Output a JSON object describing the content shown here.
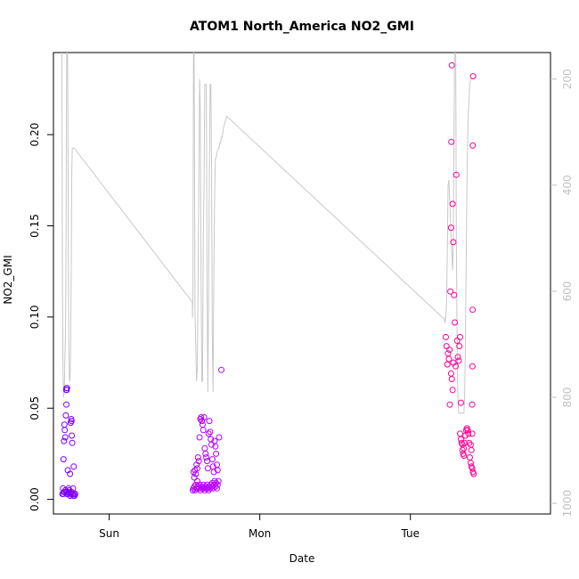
{
  "chart_data": {
    "type": "scatter",
    "title": "ATOM1 North_America NO2_GMI",
    "xlabel": "Date",
    "ylabel": "NO2_GMI",
    "x_ticks": [
      "Sun",
      "Mon",
      "Tue"
    ],
    "x_tick_values": [
      1.0,
      2.0,
      3.0
    ],
    "xlim": [
      0.63,
      3.93
    ],
    "y_ticks": [
      "0.00",
      "0.05",
      "0.10",
      "0.15",
      "0.20"
    ],
    "y_tick_values": [
      0.0,
      0.05,
      0.1,
      0.15,
      0.2
    ],
    "ylim": [
      -0.008,
      0.245
    ],
    "y2_ticks": [
      "200",
      "400",
      "600",
      "800",
      "1000"
    ],
    "y2_tick_values": [
      200,
      400,
      600,
      800,
      1000
    ],
    "y2_lim": [
      1020,
      150
    ],
    "grid": false,
    "colors": {
      "start": "#7b00ff",
      "mid": "#d000ff",
      "end": "#ff0090",
      "pressure_line": "#c8c8c8"
    },
    "series": [
      {
        "values_xy": [
          [
            0.69,
            0.003
          ],
          [
            0.695,
            0.003
          ],
          [
            0.7,
            0.004
          ],
          [
            0.705,
            0.004
          ],
          [
            0.71,
            0.005
          ],
          [
            0.715,
            0.004
          ],
          [
            0.72,
            0.003
          ],
          [
            0.725,
            0.003
          ],
          [
            0.73,
            0.004
          ],
          [
            0.735,
            0.005
          ],
          [
            0.74,
            0.002
          ],
          [
            0.745,
            0.003
          ],
          [
            0.75,
            0.004
          ],
          [
            0.755,
            0.003
          ],
          [
            0.76,
            0.002
          ],
          [
            0.765,
            0.003
          ],
          [
            0.77,
            0.002
          ],
          [
            0.775,
            0.003
          ],
          [
            0.693,
            0.006
          ],
          [
            0.697,
            0.022
          ],
          [
            0.7,
            0.032
          ],
          [
            0.703,
            0.041
          ],
          [
            0.705,
            0.038
          ],
          [
            0.708,
            0.034
          ],
          [
            0.712,
            0.046
          ],
          [
            0.716,
            0.052
          ],
          [
            0.715,
            0.06
          ],
          [
            0.717,
            0.061
          ],
          [
            0.718,
            0.06
          ],
          [
            0.72,
            0.061
          ],
          [
            0.725,
            0.016
          ],
          [
            0.73,
            0.006
          ],
          [
            0.74,
            0.014
          ],
          [
            0.745,
            0.042
          ],
          [
            0.748,
            0.044
          ],
          [
            0.75,
            0.043
          ],
          [
            0.752,
            0.035
          ],
          [
            0.755,
            0.031
          ],
          [
            0.76,
            0.006
          ],
          [
            0.765,
            0.018
          ],
          [
            1.555,
            0.005
          ],
          [
            1.56,
            0.006
          ],
          [
            1.565,
            0.007
          ],
          [
            1.57,
            0.005
          ],
          [
            1.575,
            0.008
          ],
          [
            1.58,
            0.006
          ],
          [
            1.585,
            0.01
          ],
          [
            1.59,
            0.007
          ],
          [
            1.595,
            0.006
          ],
          [
            1.6,
            0.008
          ],
          [
            1.605,
            0.005
          ],
          [
            1.61,
            0.006
          ],
          [
            1.615,
            0.007
          ],
          [
            1.62,
            0.006
          ],
          [
            1.625,
            0.008
          ],
          [
            1.63,
            0.006
          ],
          [
            1.635,
            0.005
          ],
          [
            1.64,
            0.007
          ],
          [
            1.645,
            0.006
          ],
          [
            1.65,
            0.008
          ],
          [
            1.655,
            0.006
          ],
          [
            1.66,
            0.005
          ],
          [
            1.665,
            0.007
          ],
          [
            1.67,
            0.006
          ],
          [
            1.675,
            0.008
          ],
          [
            1.68,
            0.007
          ],
          [
            1.685,
            0.009
          ],
          [
            1.69,
            0.006
          ],
          [
            1.695,
            0.008
          ],
          [
            1.7,
            0.01
          ],
          [
            1.705,
            0.007
          ],
          [
            1.71,
            0.009
          ],
          [
            1.715,
            0.006
          ],
          [
            1.72,
            0.008
          ],
          [
            1.725,
            0.01
          ],
          [
            1.56,
            0.015
          ],
          [
            1.565,
            0.012
          ],
          [
            1.57,
            0.016
          ],
          [
            1.575,
            0.014
          ],
          [
            1.58,
            0.019
          ],
          [
            1.585,
            0.017
          ],
          [
            1.59,
            0.023
          ],
          [
            1.595,
            0.021
          ],
          [
            1.6,
            0.034
          ],
          [
            1.605,
            0.044
          ],
          [
            1.61,
            0.045
          ],
          [
            1.615,
            0.043
          ],
          [
            1.62,
            0.041
          ],
          [
            1.625,
            0.038
          ],
          [
            1.63,
            0.045
          ],
          [
            1.635,
            0.028
          ],
          [
            1.64,
            0.025
          ],
          [
            1.645,
            0.023
          ],
          [
            1.65,
            0.021
          ],
          [
            1.655,
            0.017
          ],
          [
            1.66,
            0.036
          ],
          [
            1.665,
            0.043
          ],
          [
            1.67,
            0.037
          ],
          [
            1.675,
            0.033
          ],
          [
            1.68,
            0.03
          ],
          [
            1.685,
            0.022
          ],
          [
            1.69,
            0.018
          ],
          [
            1.695,
            0.015
          ],
          [
            1.7,
            0.032
          ],
          [
            1.705,
            0.029
          ],
          [
            1.71,
            0.025
          ],
          [
            1.715,
            0.019
          ],
          [
            1.72,
            0.016
          ],
          [
            1.73,
            0.034
          ],
          [
            1.745,
            0.071
          ],
          [
            3.235,
            0.089
          ],
          [
            3.24,
            0.084
          ],
          [
            3.245,
            0.074
          ],
          [
            3.25,
            0.08
          ],
          [
            3.255,
            0.077
          ],
          [
            3.26,
            0.082
          ],
          [
            3.262,
            0.052
          ],
          [
            3.265,
            0.114
          ],
          [
            3.27,
            0.149
          ],
          [
            3.272,
            0.196
          ],
          [
            3.275,
            0.238
          ],
          [
            3.28,
            0.162
          ],
          [
            3.285,
            0.141
          ],
          [
            3.29,
            0.112
          ],
          [
            3.295,
            0.097
          ],
          [
            3.3,
            0.073
          ],
          [
            3.305,
            0.178
          ],
          [
            3.31,
            0.087
          ],
          [
            3.315,
            0.078
          ],
          [
            3.32,
            0.076
          ],
          [
            3.325,
            0.084
          ],
          [
            3.33,
            0.089
          ],
          [
            3.335,
            0.053
          ],
          [
            3.27,
            0.069
          ],
          [
            3.275,
            0.066
          ],
          [
            3.28,
            0.06
          ],
          [
            3.285,
            0.075
          ],
          [
            3.33,
            0.036
          ],
          [
            3.335,
            0.033
          ],
          [
            3.34,
            0.031
          ],
          [
            3.345,
            0.027
          ],
          [
            3.35,
            0.025
          ],
          [
            3.355,
            0.024
          ],
          [
            3.36,
            0.031
          ],
          [
            3.365,
            0.035
          ],
          [
            3.37,
            0.038
          ],
          [
            3.375,
            0.039
          ],
          [
            3.38,
            0.038
          ],
          [
            3.385,
            0.036
          ],
          [
            3.39,
            0.031
          ],
          [
            3.395,
            0.023
          ],
          [
            3.4,
            0.02
          ],
          [
            3.405,
            0.018
          ],
          [
            3.41,
            0.017
          ],
          [
            3.415,
            0.015
          ],
          [
            3.42,
            0.014
          ],
          [
            3.4,
            0.03
          ],
          [
            3.405,
            0.027
          ],
          [
            3.41,
            0.036
          ],
          [
            3.41,
            0.052
          ],
          [
            3.412,
            0.073
          ],
          [
            3.413,
            0.104
          ],
          [
            3.414,
            0.194
          ],
          [
            3.416,
            0.232
          ],
          [
            3.345,
            0.03
          ],
          [
            3.355,
            0.028
          ]
        ]
      },
      {
        "line_xy": [
          [
            0.686,
            100
          ],
          [
            0.688,
            420
          ],
          [
            0.69,
            580
          ],
          [
            0.692,
            700
          ],
          [
            0.694,
            760
          ],
          [
            0.696,
            790
          ],
          [
            0.698,
            800
          ],
          [
            0.7,
            795
          ],
          [
            0.702,
            780
          ],
          [
            0.704,
            760
          ],
          [
            0.706,
            720
          ],
          [
            0.708,
            700
          ],
          [
            0.71,
            680
          ],
          [
            0.712,
            600
          ],
          [
            0.714,
            480
          ],
          [
            0.716,
            300
          ],
          [
            0.718,
            150
          ],
          [
            0.72,
            100
          ],
          [
            0.722,
            100
          ],
          [
            0.724,
            160
          ],
          [
            0.726,
            250
          ],
          [
            0.728,
            450
          ],
          [
            0.73,
            600
          ],
          [
            0.732,
            700
          ],
          [
            0.734,
            740
          ],
          [
            0.736,
            760
          ],
          [
            0.738,
            770
          ],
          [
            0.74,
            765
          ],
          [
            0.742,
            750
          ],
          [
            0.744,
            700
          ],
          [
            0.746,
            640
          ],
          [
            0.748,
            560
          ],
          [
            0.75,
            450
          ],
          [
            0.752,
            380
          ],
          [
            0.754,
            340
          ],
          [
            0.756,
            330
          ],
          [
            0.758,
            330
          ],
          [
            0.76,
            330
          ],
          [
            0.762,
            330
          ],
          [
            0.764,
            330
          ],
          [
            0.766,
            330
          ],
          [
            0.768,
            330
          ],
          [
            1.55,
            620
          ],
          [
            1.552,
            620
          ],
          [
            1.554,
            650
          ],
          [
            1.556,
            600
          ],
          [
            1.56,
            100
          ],
          [
            1.563,
            100
          ],
          [
            1.566,
            300
          ],
          [
            1.57,
            640
          ],
          [
            1.575,
            700
          ],
          [
            1.58,
            770
          ],
          [
            1.585,
            750
          ],
          [
            1.59,
            600
          ],
          [
            1.595,
            400
          ],
          [
            1.6,
            200
          ],
          [
            1.605,
            260
          ],
          [
            1.61,
            560
          ],
          [
            1.615,
            770
          ],
          [
            1.62,
            770
          ],
          [
            1.625,
            500
          ],
          [
            1.63,
            400
          ],
          [
            1.635,
            210
          ],
          [
            1.64,
            210
          ],
          [
            1.645,
            210
          ],
          [
            1.65,
            600
          ],
          [
            1.655,
            790
          ],
          [
            1.66,
            600
          ],
          [
            1.665,
            400
          ],
          [
            1.67,
            210
          ],
          [
            1.675,
            210
          ],
          [
            1.68,
            350
          ],
          [
            1.685,
            700
          ],
          [
            1.69,
            790
          ],
          [
            1.695,
            560
          ],
          [
            1.7,
            430
          ],
          [
            1.705,
            350
          ],
          [
            1.71,
            350
          ],
          [
            1.715,
            340
          ],
          [
            1.72,
            335
          ],
          [
            1.725,
            330
          ],
          [
            1.73,
            330
          ],
          [
            1.735,
            320
          ],
          [
            1.74,
            320
          ],
          [
            1.745,
            310
          ],
          [
            1.75,
            310
          ],
          [
            1.76,
            290
          ],
          [
            1.78,
            270
          ],
          [
            3.215,
            650
          ],
          [
            3.22,
            650
          ],
          [
            3.225,
            650
          ],
          [
            3.23,
            660
          ],
          [
            3.235,
            650
          ],
          [
            3.24,
            620
          ],
          [
            3.245,
            520
          ],
          [
            3.25,
            400
          ],
          [
            3.255,
            390
          ],
          [
            3.26,
            420
          ],
          [
            3.265,
            460
          ],
          [
            3.27,
            500
          ],
          [
            3.275,
            530
          ],
          [
            3.28,
            560
          ],
          [
            3.285,
            500
          ],
          [
            3.29,
            280
          ],
          [
            3.295,
            100
          ],
          [
            3.3,
            100
          ],
          [
            3.305,
            500
          ],
          [
            3.31,
            700
          ],
          [
            3.315,
            800
          ],
          [
            3.32,
            830
          ],
          [
            3.325,
            830
          ],
          [
            3.33,
            830
          ],
          [
            3.335,
            830
          ],
          [
            3.34,
            830
          ],
          [
            3.345,
            830
          ],
          [
            3.35,
            830
          ],
          [
            3.355,
            830
          ],
          [
            3.36,
            800
          ],
          [
            3.365,
            700
          ],
          [
            3.37,
            550
          ],
          [
            3.375,
            400
          ],
          [
            3.38,
            310
          ],
          [
            3.385,
            260
          ],
          [
            3.39,
            230
          ],
          [
            3.395,
            210
          ],
          [
            3.4,
            200
          ]
        ]
      }
    ]
  }
}
